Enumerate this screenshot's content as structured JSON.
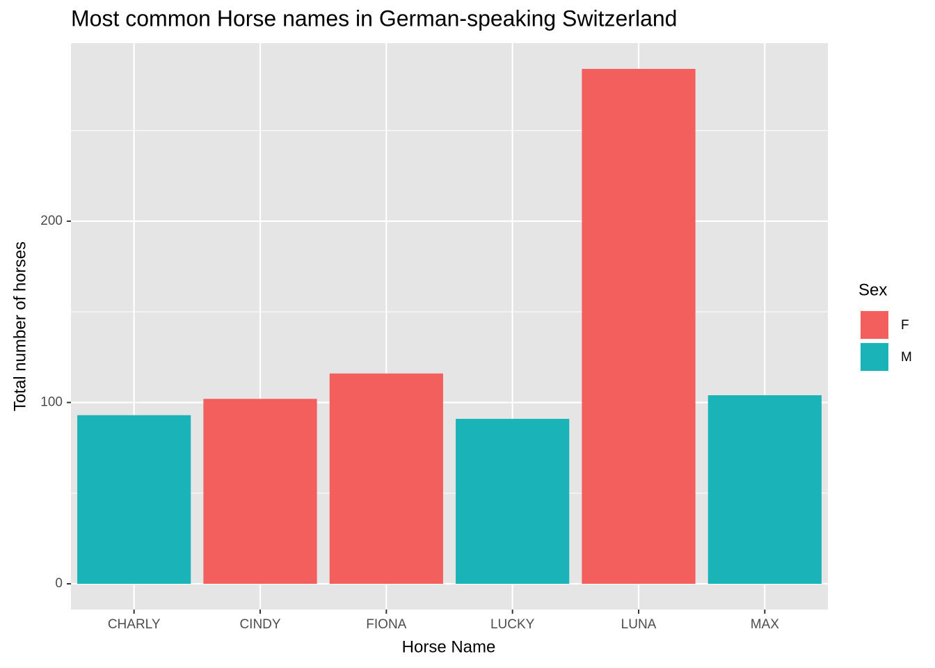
{
  "chart_data": {
    "type": "bar",
    "title": "Most common Horse names in German-speaking Switzerland",
    "x_label": "Horse Name",
    "y_label": "Total number of horses",
    "categories": [
      "CHARLY",
      "CINDY",
      "FIONA",
      "LUCKY",
      "LUNA",
      "MAX"
    ],
    "legend_title": "Sex",
    "legend_position": "right",
    "series": [
      {
        "name": "F",
        "color": "#f25f5c",
        "values": [
          null,
          102,
          116,
          null,
          284,
          null
        ]
      },
      {
        "name": "M",
        "color": "#19b3b8",
        "values": [
          93,
          null,
          null,
          91,
          null,
          104
        ]
      }
    ],
    "ylim": [
      -14.2,
      298.2
    ],
    "yticks": [
      0,
      100,
      200
    ],
    "y_minor_ticks": [
      50,
      150,
      250
    ],
    "grid": true
  }
}
